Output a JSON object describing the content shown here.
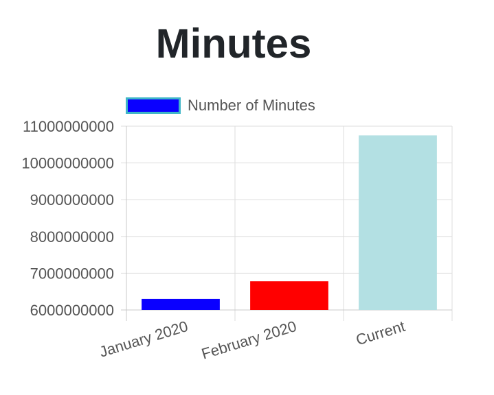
{
  "chart_data": {
    "type": "bar",
    "title": "Minutes",
    "categories": [
      "January 2020",
      "February 2020",
      "Current"
    ],
    "series": [
      {
        "name": "Number of Minutes",
        "values": [
          6300000000,
          6780000000,
          10750000000
        ],
        "colors": [
          "#0a00ff",
          "#ff0000",
          "#b3e0e3"
        ]
      }
    ],
    "legend": {
      "position": "top-left",
      "swatch_color": "#0a00ff",
      "swatch_border": "#3fb6c7"
    },
    "yticks": [
      "11000000000",
      "10000000000",
      "9000000000",
      "8000000000",
      "7000000000",
      "6000000000"
    ],
    "ylim": [
      6000000000,
      11000000000
    ],
    "xlabel": "",
    "ylabel": "",
    "grid": true
  }
}
